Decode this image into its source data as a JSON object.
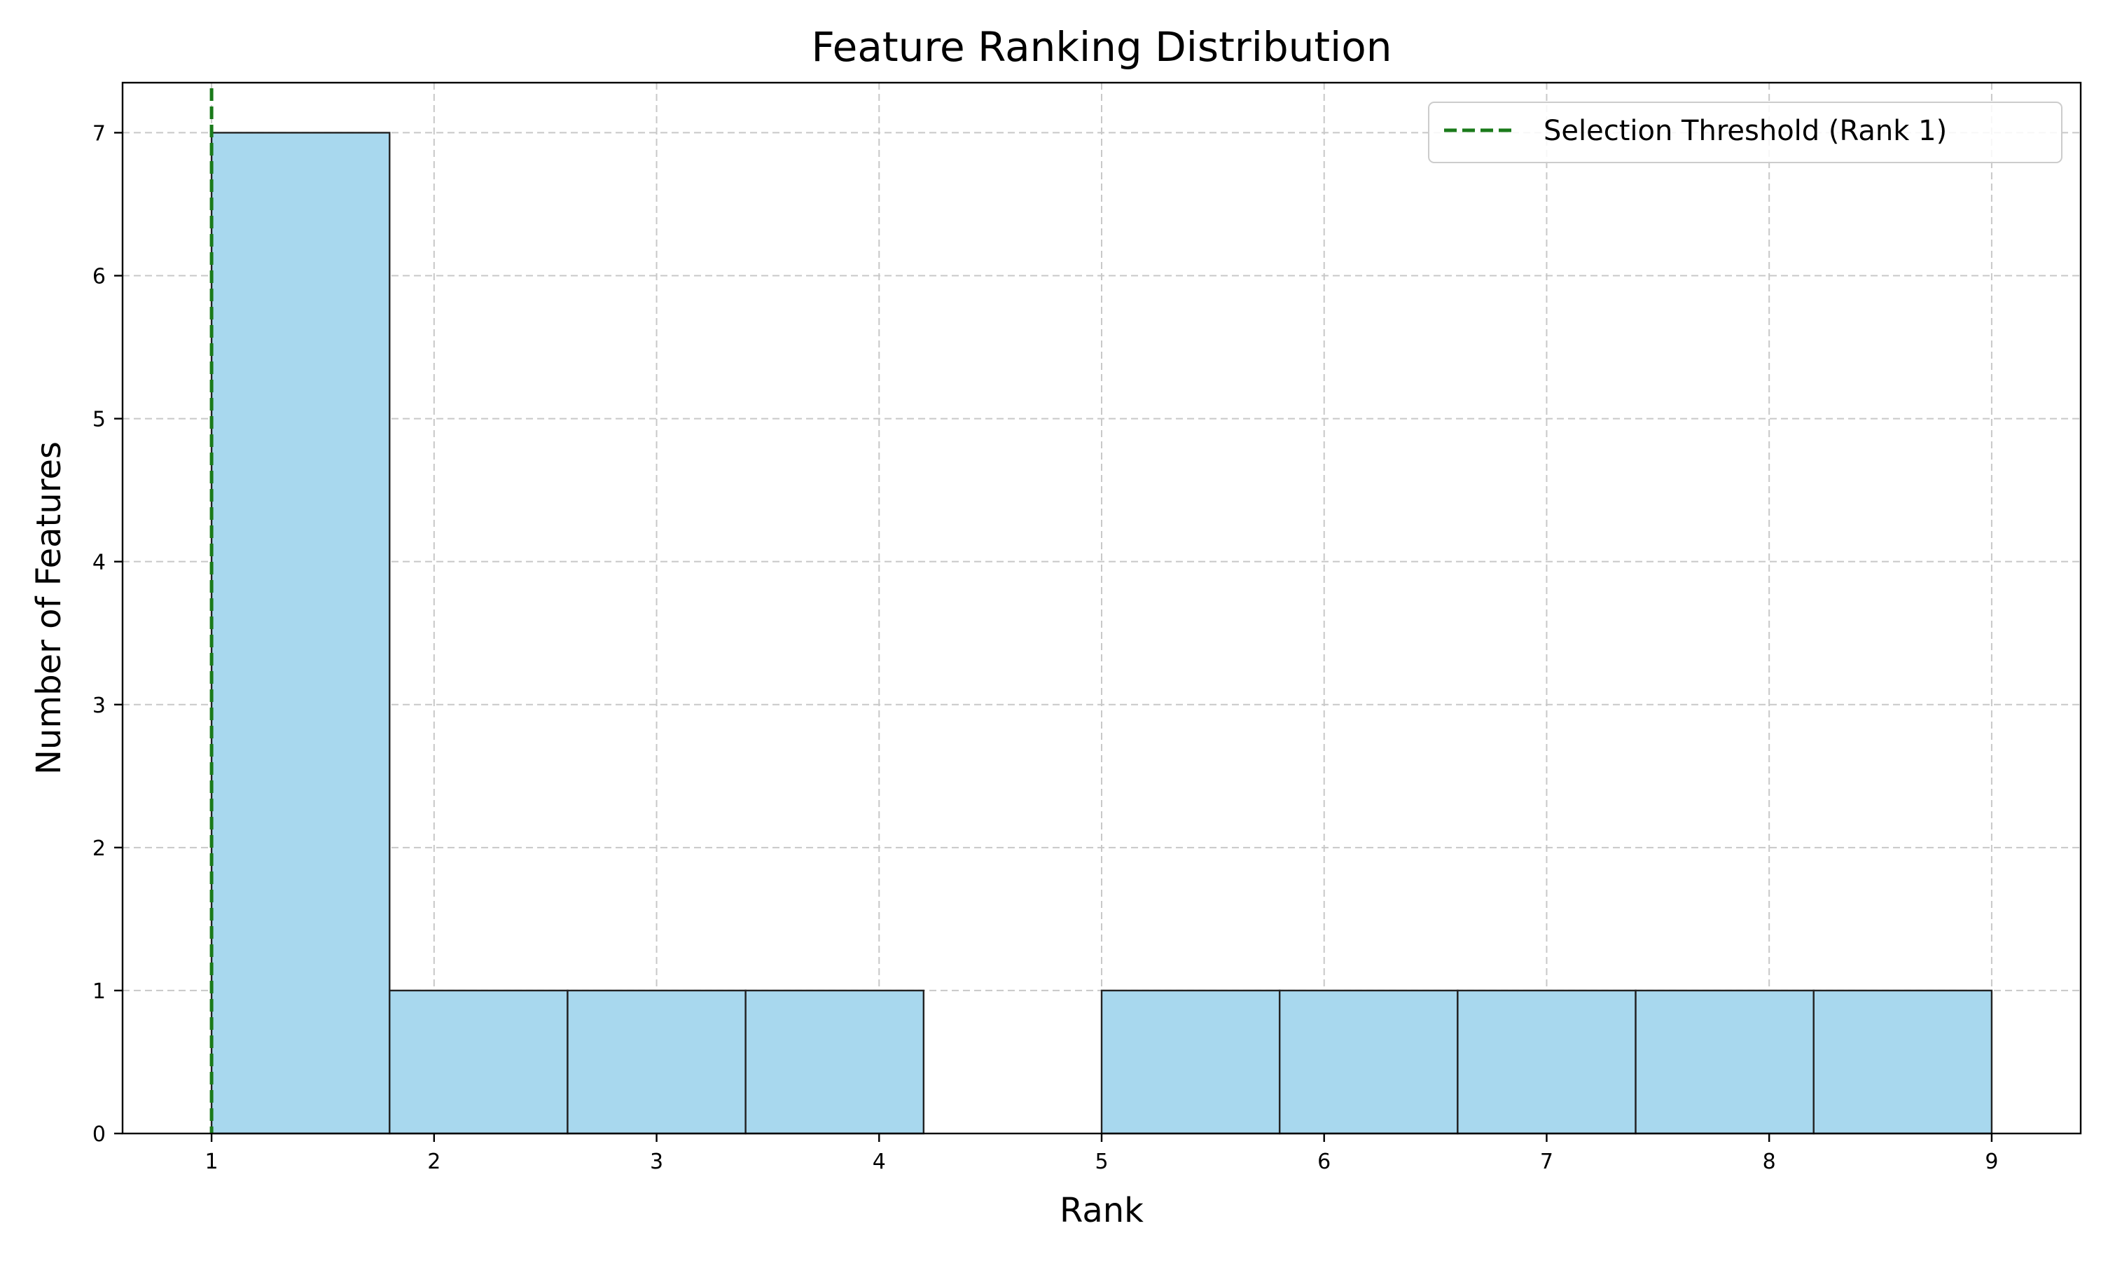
{
  "chart_data": {
    "type": "bar",
    "subtype": "histogram",
    "title": "Feature Ranking Distribution",
    "xlabel": "Rank",
    "ylabel": "Number of Features",
    "xlim": [
      0.6,
      9.4
    ],
    "ylim": [
      0,
      7.35
    ],
    "xticks": [
      1,
      2,
      3,
      4,
      5,
      6,
      7,
      8,
      9
    ],
    "yticks": [
      0,
      1,
      2,
      3,
      4,
      5,
      6,
      7
    ],
    "bins": [
      {
        "start": 1.0,
        "end": 1.8,
        "count": 7
      },
      {
        "start": 1.8,
        "end": 2.6,
        "count": 1
      },
      {
        "start": 2.6,
        "end": 3.4,
        "count": 1
      },
      {
        "start": 3.4,
        "end": 4.2,
        "count": 1
      },
      {
        "start": 4.2,
        "end": 5.0,
        "count": 0
      },
      {
        "start": 5.0,
        "end": 5.8,
        "count": 1
      },
      {
        "start": 5.8,
        "end": 6.6,
        "count": 1
      },
      {
        "start": 6.6,
        "end": 7.4,
        "count": 1
      },
      {
        "start": 7.4,
        "end": 8.2,
        "count": 1
      },
      {
        "start": 8.2,
        "end": 9.0,
        "count": 1
      }
    ],
    "bar_color": "#a8d8ee",
    "bar_edge_color": "#222222",
    "threshold": {
      "x": 1,
      "label": "Selection Threshold (Rank 1)",
      "color": "#1a7a1a",
      "style": "dashed"
    },
    "grid": true,
    "legend_position": "upper-right"
  }
}
